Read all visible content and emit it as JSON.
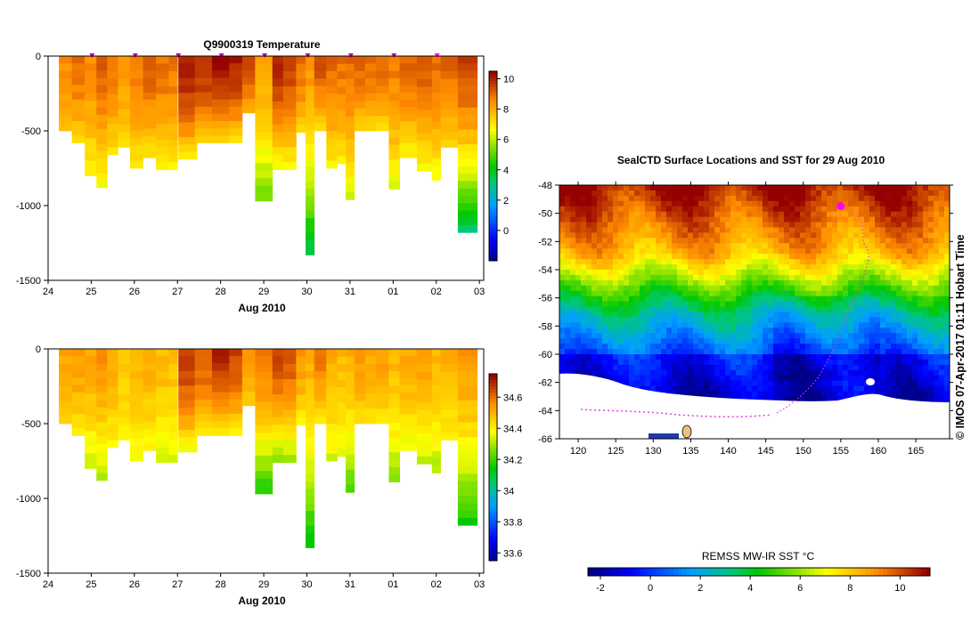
{
  "chart_data": [
    {
      "id": "temperature",
      "type": "heatmap",
      "title": "Q9900319  Temperature",
      "xlabel": "Aug 2010",
      "ylabel": "",
      "x_ticks": [
        "24",
        "25",
        "26",
        "27",
        "28",
        "29",
        "30",
        "31",
        "01",
        "02",
        "03"
      ],
      "y_ticks": [
        "0",
        "-500",
        "-1000",
        "-1500"
      ],
      "xlim": [
        24,
        34.1
      ],
      "ylim": [
        -1500,
        0
      ],
      "colorbar": {
        "ticks": [
          "10",
          "8",
          "6",
          "4",
          "2",
          "0"
        ],
        "vmin": -2,
        "vmax": 10.5
      },
      "profiles": [
        {
          "day": 24.25,
          "w": 0.3,
          "depth": 500,
          "surf": 8.6,
          "bot": 7.6
        },
        {
          "day": 24.55,
          "w": 0.3,
          "depth": 580,
          "surf": 9.1,
          "bot": 7.4
        },
        {
          "day": 24.85,
          "w": 0.28,
          "depth": 800,
          "surf": 8.6,
          "bot": 6.9
        },
        {
          "day": 25.12,
          "w": 0.25,
          "depth": 880,
          "surf": 9.2,
          "bot": 6.7
        },
        {
          "day": 25.37,
          "w": 0.25,
          "depth": 660,
          "surf": 8.9,
          "bot": 7.2
        },
        {
          "day": 25.62,
          "w": 0.28,
          "depth": 610,
          "surf": 8.5,
          "bot": 7.4
        },
        {
          "day": 25.9,
          "w": 0.3,
          "depth": 750,
          "surf": 8.8,
          "bot": 7.1
        },
        {
          "day": 26.2,
          "w": 0.3,
          "depth": 680,
          "surf": 9.3,
          "bot": 7.2
        },
        {
          "day": 26.5,
          "w": 0.3,
          "depth": 760,
          "surf": 9.0,
          "bot": 7.1
        },
        {
          "day": 26.8,
          "w": 0.2,
          "depth": 760,
          "surf": 8.9,
          "bot": 7.0
        },
        {
          "day": 27.02,
          "w": 0.43,
          "depth": 690,
          "surf": 10.2,
          "bot": 7.3
        },
        {
          "day": 27.4,
          "w": 0.4,
          "depth": 580,
          "surf": 10.0,
          "bot": 7.6
        },
        {
          "day": 27.8,
          "w": 0.4,
          "depth": 580,
          "surf": 10.3,
          "bot": 7.5
        },
        {
          "day": 28.2,
          "w": 0.3,
          "depth": 580,
          "surf": 10.1,
          "bot": 7.4
        },
        {
          "day": 28.5,
          "w": 0.3,
          "depth": 380,
          "surf": 9.6,
          "bot": 8.0
        },
        {
          "day": 28.8,
          "w": 0.4,
          "depth": 970,
          "surf": 8.3,
          "bot": 5.4
        },
        {
          "day": 29.2,
          "w": 0.25,
          "depth": 760,
          "surf": 10.0,
          "bot": 6.8
        },
        {
          "day": 29.45,
          "w": 0.3,
          "depth": 760,
          "surf": 9.6,
          "bot": 6.8
        },
        {
          "day": 29.75,
          "w": 0.22,
          "depth": 510,
          "surf": 9.0,
          "bot": 7.6
        },
        {
          "day": 29.97,
          "w": 0.2,
          "depth": 1330,
          "surf": 8.5,
          "bot": 3.6
        },
        {
          "day": 30.17,
          "w": 0.28,
          "depth": 500,
          "surf": 9.5,
          "bot": 7.4
        },
        {
          "day": 30.45,
          "w": 0.25,
          "depth": 750,
          "surf": 9.1,
          "bot": 6.9
        },
        {
          "day": 30.7,
          "w": 0.2,
          "depth": 720,
          "surf": 9.0,
          "bot": 7.0
        },
        {
          "day": 30.9,
          "w": 0.2,
          "depth": 960,
          "surf": 9.1,
          "bot": 6.2
        },
        {
          "day": 31.1,
          "w": 0.25,
          "depth": 500,
          "surf": 9.2,
          "bot": 7.4
        },
        {
          "day": 31.35,
          "w": 0.25,
          "depth": 500,
          "surf": 9.0,
          "bot": 7.4
        },
        {
          "day": 31.6,
          "w": 0.3,
          "depth": 500,
          "surf": 9.2,
          "bot": 7.3
        },
        {
          "day": 31.9,
          "w": 0.25,
          "depth": 890,
          "surf": 8.8,
          "bot": 6.6
        },
        {
          "day": 32.15,
          "w": 0.4,
          "depth": 680,
          "surf": 9.1,
          "bot": 7.0
        },
        {
          "day": 32.55,
          "w": 0.35,
          "depth": 770,
          "surf": 9.4,
          "bot": 6.8
        },
        {
          "day": 32.9,
          "w": 0.2,
          "depth": 830,
          "surf": 9.0,
          "bot": 6.7
        },
        {
          "day": 33.1,
          "w": 0.4,
          "depth": 610,
          "surf": 9.2,
          "bot": 7.3
        },
        {
          "day": 33.5,
          "w": 0.45,
          "depth": 1180,
          "surf": 9.6,
          "bot": 3.3
        }
      ]
    },
    {
      "id": "salinity",
      "type": "heatmap",
      "title": "",
      "xlabel": "Aug 2010",
      "ylabel": "",
      "x_ticks": [
        "24",
        "25",
        "26",
        "27",
        "28",
        "29",
        "30",
        "31",
        "01",
        "02",
        "03"
      ],
      "y_ticks": [
        "0",
        "-500",
        "-1000",
        "-1500"
      ],
      "xlim": [
        24,
        34.1
      ],
      "ylim": [
        -1500,
        0
      ],
      "colorbar": {
        "ticks": [
          "34.6",
          "34.4",
          "34.2",
          "34",
          "33.8",
          "33.6"
        ],
        "vmin": 33.55,
        "vmax": 34.75
      },
      "profiles": [
        {
          "day": 24.25,
          "w": 0.3,
          "depth": 500,
          "surf": 34.53,
          "bot": 34.44
        },
        {
          "day": 24.55,
          "w": 0.3,
          "depth": 580,
          "surf": 34.55,
          "bot": 34.42
        },
        {
          "day": 24.85,
          "w": 0.28,
          "depth": 800,
          "surf": 34.53,
          "bot": 34.34
        },
        {
          "day": 25.12,
          "w": 0.25,
          "depth": 880,
          "surf": 34.56,
          "bot": 34.32
        },
        {
          "day": 25.37,
          "w": 0.25,
          "depth": 660,
          "surf": 34.52,
          "bot": 34.4
        },
        {
          "day": 25.62,
          "w": 0.28,
          "depth": 610,
          "surf": 34.48,
          "bot": 34.42
        },
        {
          "day": 25.9,
          "w": 0.3,
          "depth": 750,
          "surf": 34.5,
          "bot": 34.38
        },
        {
          "day": 26.2,
          "w": 0.3,
          "depth": 680,
          "surf": 34.52,
          "bot": 34.4
        },
        {
          "day": 26.5,
          "w": 0.3,
          "depth": 760,
          "surf": 34.5,
          "bot": 34.36
        },
        {
          "day": 26.8,
          "w": 0.2,
          "depth": 760,
          "surf": 34.49,
          "bot": 34.36
        },
        {
          "day": 27.02,
          "w": 0.43,
          "depth": 690,
          "surf": 34.68,
          "bot": 34.4
        },
        {
          "day": 27.4,
          "w": 0.4,
          "depth": 580,
          "surf": 34.64,
          "bot": 34.43
        },
        {
          "day": 27.8,
          "w": 0.4,
          "depth": 580,
          "surf": 34.7,
          "bot": 34.42
        },
        {
          "day": 28.2,
          "w": 0.3,
          "depth": 580,
          "surf": 34.66,
          "bot": 34.42
        },
        {
          "day": 28.5,
          "w": 0.3,
          "depth": 380,
          "surf": 34.55,
          "bot": 34.46
        },
        {
          "day": 28.8,
          "w": 0.4,
          "depth": 970,
          "surf": 34.6,
          "bot": 34.18
        },
        {
          "day": 29.2,
          "w": 0.25,
          "depth": 760,
          "surf": 34.66,
          "bot": 34.3
        },
        {
          "day": 29.45,
          "w": 0.3,
          "depth": 760,
          "surf": 34.64,
          "bot": 34.3
        },
        {
          "day": 29.75,
          "w": 0.22,
          "depth": 510,
          "surf": 34.55,
          "bot": 34.42
        },
        {
          "day": 29.97,
          "w": 0.2,
          "depth": 1330,
          "surf": 34.52,
          "bot": 34.14
        },
        {
          "day": 30.17,
          "w": 0.28,
          "depth": 500,
          "surf": 34.6,
          "bot": 34.43
        },
        {
          "day": 30.45,
          "w": 0.25,
          "depth": 750,
          "surf": 34.52,
          "bot": 34.36
        },
        {
          "day": 30.7,
          "w": 0.2,
          "depth": 720,
          "surf": 34.5,
          "bot": 34.37
        },
        {
          "day": 30.9,
          "w": 0.2,
          "depth": 960,
          "surf": 34.52,
          "bot": 34.22
        },
        {
          "day": 31.1,
          "w": 0.25,
          "depth": 500,
          "surf": 34.55,
          "bot": 34.43
        },
        {
          "day": 31.35,
          "w": 0.25,
          "depth": 500,
          "surf": 34.52,
          "bot": 34.43
        },
        {
          "day": 31.6,
          "w": 0.3,
          "depth": 500,
          "surf": 34.55,
          "bot": 34.42
        },
        {
          "day": 31.9,
          "w": 0.25,
          "depth": 890,
          "surf": 34.5,
          "bot": 34.3
        },
        {
          "day": 32.15,
          "w": 0.4,
          "depth": 680,
          "surf": 34.52,
          "bot": 34.38
        },
        {
          "day": 32.55,
          "w": 0.35,
          "depth": 770,
          "surf": 34.55,
          "bot": 34.34
        },
        {
          "day": 32.9,
          "w": 0.2,
          "depth": 830,
          "surf": 34.5,
          "bot": 34.32
        },
        {
          "day": 33.1,
          "w": 0.4,
          "depth": 610,
          "surf": 34.52,
          "bot": 34.4
        },
        {
          "day": 33.5,
          "w": 0.45,
          "depth": 1180,
          "surf": 34.55,
          "bot": 34.16
        }
      ]
    },
    {
      "id": "sst-map",
      "type": "heatmap",
      "title": "SealCTD Surface Locations and SST for 29 Aug 2010",
      "xlabel": "",
      "ylabel": "",
      "x_ticks": [
        "120",
        "125",
        "130",
        "135",
        "140",
        "145",
        "150",
        "155",
        "160",
        "165"
      ],
      "y_ticks": [
        "-48",
        "-50",
        "-52",
        "-54",
        "-56",
        "-58",
        "-60",
        "-62",
        "-64",
        "-66"
      ],
      "xlim": [
        117.5,
        169.5
      ],
      "ylim": [
        -66,
        -48
      ],
      "colorbar": {
        "label": "REMSS MW-IR SST °C",
        "ticks": [
          "-2",
          "0",
          "2",
          "4",
          "6",
          "8",
          "10"
        ],
        "vmin": -2.5,
        "vmax": 11.2
      },
      "track_point": {
        "lon": 155,
        "lat": -49.5
      }
    }
  ],
  "annotation": "©  IMOS 07-Apr-2017 01:11 Hobart Time"
}
